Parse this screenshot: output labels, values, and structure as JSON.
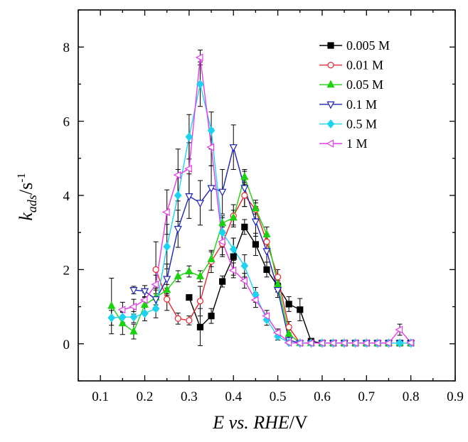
{
  "chart_data": {
    "type": "line",
    "xlabel": {
      "main": "E vs. RHE",
      "unit": "/V"
    },
    "ylabel": {
      "main": "k",
      "sub": "ads",
      "unit": "/s",
      "sup": "-1"
    },
    "xlim": [
      0.05,
      0.9
    ],
    "ylim": [
      -1,
      9
    ],
    "xticks": [
      "0.1",
      "0.2",
      "0.3",
      "0.4",
      "0.5",
      "0.6",
      "0.7",
      "0.8",
      "0.9"
    ],
    "yticks": [
      "0",
      "2",
      "4",
      "6",
      "8"
    ],
    "legend_position": "top-right",
    "series": [
      {
        "name": "0.005 M",
        "color": "#000000",
        "marker": "square",
        "fill": true,
        "points": [
          [
            0.3,
            1.25
          ],
          [
            0.325,
            0.45
          ],
          [
            0.35,
            0.75
          ],
          [
            0.375,
            1.68
          ],
          [
            0.4,
            2.35
          ],
          [
            0.425,
            3.15
          ],
          [
            0.45,
            2.68
          ],
          [
            0.475,
            2.0
          ],
          [
            0.5,
            1.55
          ],
          [
            0.525,
            1.07
          ],
          [
            0.55,
            0.92
          ],
          [
            0.575,
            0.07
          ],
          [
            0.6,
            0.02
          ],
          [
            0.625,
            0.02
          ],
          [
            0.65,
            0.02
          ],
          [
            0.675,
            0.02
          ],
          [
            0.7,
            0.02
          ],
          [
            0.725,
            0.02
          ],
          [
            0.75,
            0.02
          ],
          [
            0.775,
            0.02
          ],
          [
            0.8,
            0.02
          ]
        ],
        "errors": [
          0,
          0.5,
          0.2,
          0.15,
          0.5,
          0.2,
          0.3,
          0.2,
          0.15,
          0.2,
          0.3,
          0.05,
          0,
          0,
          0,
          0,
          0,
          0,
          0,
          0,
          0
        ]
      },
      {
        "name": "0.01 M",
        "color": "#e8262b",
        "marker": "circle",
        "fill": false,
        "points": [
          [
            0.225,
            2.0
          ],
          [
            0.25,
            1.2
          ],
          [
            0.275,
            0.68
          ],
          [
            0.3,
            0.63
          ],
          [
            0.325,
            1.15
          ],
          [
            0.35,
            2.22
          ],
          [
            0.375,
            2.7
          ],
          [
            0.4,
            3.45
          ],
          [
            0.425,
            4.0
          ],
          [
            0.45,
            3.62
          ],
          [
            0.475,
            2.75
          ],
          [
            0.5,
            1.8
          ],
          [
            0.525,
            0.45
          ],
          [
            0.55,
            0.02
          ],
          [
            0.575,
            0.02
          ],
          [
            0.6,
            0.02
          ],
          [
            0.625,
            0.02
          ],
          [
            0.65,
            0.02
          ],
          [
            0.675,
            0.02
          ],
          [
            0.7,
            0.02
          ],
          [
            0.725,
            0.02
          ],
          [
            0.75,
            0.02
          ],
          [
            0.775,
            0.02
          ],
          [
            0.8,
            0.02
          ]
        ],
        "errors": [
          0.75,
          0.3,
          0.15,
          0.12,
          0.4,
          0.3,
          0.3,
          0.3,
          0.3,
          0.25,
          0.2,
          0.2,
          0.15,
          0,
          0,
          0,
          0,
          0,
          0,
          0,
          0,
          0,
          0,
          0
        ]
      },
      {
        "name": "0.05 M",
        "color": "#1cd10f",
        "marker": "triangle-up",
        "fill": true,
        "points": [
          [
            0.125,
            1.02
          ],
          [
            0.15,
            0.55
          ],
          [
            0.175,
            0.33
          ],
          [
            0.2,
            1.05
          ],
          [
            0.225,
            1.25
          ],
          [
            0.25,
            1.45
          ],
          [
            0.275,
            1.82
          ],
          [
            0.3,
            1.95
          ],
          [
            0.325,
            1.82
          ],
          [
            0.35,
            2.28
          ],
          [
            0.375,
            3.25
          ],
          [
            0.4,
            3.4
          ],
          [
            0.425,
            4.5
          ],
          [
            0.45,
            3.65
          ],
          [
            0.475,
            2.95
          ],
          [
            0.5,
            1.6
          ],
          [
            0.525,
            0.27
          ],
          [
            0.55,
            0.02
          ],
          [
            0.575,
            0.02
          ],
          [
            0.6,
            0.02
          ],
          [
            0.625,
            0.02
          ],
          [
            0.65,
            0.02
          ],
          [
            0.675,
            0.02
          ],
          [
            0.7,
            0.02
          ],
          [
            0.725,
            0.02
          ],
          [
            0.75,
            0.02
          ],
          [
            0.775,
            0.02
          ],
          [
            0.8,
            0.02
          ]
        ],
        "errors": [
          0.75,
          0.3,
          0.2,
          0.2,
          0.2,
          0.15,
          0.15,
          0.15,
          0.15,
          0.2,
          0.2,
          0.2,
          0.15,
          0.15,
          0.2,
          0.2,
          0.1,
          0,
          0,
          0,
          0,
          0,
          0,
          0,
          0,
          0,
          0,
          0
        ]
      },
      {
        "name": "0.1 M",
        "color": "#1f23b5",
        "marker": "triangle-down",
        "fill": false,
        "points": [
          [
            0.175,
            1.45
          ],
          [
            0.2,
            1.42
          ],
          [
            0.225,
            1.2
          ],
          [
            0.25,
            1.75
          ],
          [
            0.275,
            3.1
          ],
          [
            0.3,
            3.98
          ],
          [
            0.325,
            3.8
          ],
          [
            0.35,
            4.2
          ],
          [
            0.375,
            4.1
          ],
          [
            0.4,
            5.3
          ],
          [
            0.425,
            4.2
          ],
          [
            0.45,
            3.3
          ],
          [
            0.475,
            2.5
          ],
          [
            0.5,
            1.45
          ],
          [
            0.525,
            0.1
          ],
          [
            0.55,
            0.02
          ],
          [
            0.575,
            0.02
          ],
          [
            0.6,
            0.02
          ],
          [
            0.625,
            0.02
          ],
          [
            0.65,
            0.02
          ],
          [
            0.675,
            0.02
          ],
          [
            0.7,
            0.02
          ],
          [
            0.725,
            0.02
          ],
          [
            0.75,
            0.02
          ],
          [
            0.775,
            0.02
          ],
          [
            0.8,
            0.02
          ]
        ],
        "errors": [
          0.1,
          0.15,
          0.3,
          0.4,
          0.5,
          0.6,
          0.6,
          0.6,
          0.6,
          0.6,
          0.5,
          0.4,
          0.3,
          0.2,
          0.1,
          0,
          0,
          0,
          0,
          0,
          0,
          0,
          0,
          0,
          0,
          0
        ]
      },
      {
        "name": "0.5 M",
        "color": "#1ed3f0",
        "marker": "diamond",
        "fill": true,
        "points": [
          [
            0.125,
            0.7
          ],
          [
            0.15,
            0.72
          ],
          [
            0.175,
            0.72
          ],
          [
            0.2,
            0.82
          ],
          [
            0.225,
            0.95
          ],
          [
            0.25,
            2.62
          ],
          [
            0.275,
            4.0
          ],
          [
            0.3,
            5.58
          ],
          [
            0.325,
            7.0
          ],
          [
            0.35,
            5.75
          ],
          [
            0.375,
            3.0
          ],
          [
            0.4,
            2.55
          ],
          [
            0.425,
            2.1
          ],
          [
            0.45,
            1.32
          ],
          [
            0.475,
            0.65
          ],
          [
            0.5,
            0.2
          ],
          [
            0.525,
            0.03
          ],
          [
            0.55,
            0.02
          ],
          [
            0.575,
            0.02
          ],
          [
            0.6,
            0.02
          ],
          [
            0.625,
            0.02
          ],
          [
            0.65,
            0.02
          ],
          [
            0.675,
            0.02
          ],
          [
            0.7,
            0.02
          ],
          [
            0.725,
            0.02
          ],
          [
            0.75,
            0.02
          ],
          [
            0.775,
            0.02
          ],
          [
            0.8,
            0.02
          ]
        ],
        "errors": [
          0.2,
          0.15,
          0.15,
          0.2,
          0.25,
          0.6,
          0.7,
          0.6,
          0.6,
          0.5,
          0.4,
          0.3,
          0.3,
          0.2,
          0.15,
          0.1,
          0,
          0,
          0,
          0,
          0,
          0,
          0,
          0,
          0,
          0,
          0,
          0
        ]
      },
      {
        "name": "1 M",
        "color": "#e53bea",
        "marker": "triangle-left",
        "fill": false,
        "points": [
          [
            0.15,
            0.92
          ],
          [
            0.175,
            1.0
          ],
          [
            0.2,
            1.18
          ],
          [
            0.225,
            1.6
          ],
          [
            0.25,
            3.55
          ],
          [
            0.275,
            4.55
          ],
          [
            0.3,
            4.72
          ],
          [
            0.325,
            7.72
          ],
          [
            0.35,
            5.3
          ],
          [
            0.375,
            2.75
          ],
          [
            0.4,
            1.98
          ],
          [
            0.425,
            1.7
          ],
          [
            0.45,
            1.18
          ],
          [
            0.475,
            0.75
          ],
          [
            0.5,
            0.3
          ],
          [
            0.525,
            0.03
          ],
          [
            0.55,
            0.02
          ],
          [
            0.575,
            0.02
          ],
          [
            0.6,
            0.02
          ],
          [
            0.625,
            0.02
          ],
          [
            0.65,
            0.02
          ],
          [
            0.675,
            0.02
          ],
          [
            0.7,
            0.02
          ],
          [
            0.725,
            0.02
          ],
          [
            0.75,
            0.02
          ],
          [
            0.775,
            0.38
          ],
          [
            0.8,
            0.03
          ]
        ],
        "errors": [
          0.2,
          0.2,
          0.2,
          0.25,
          0.6,
          0.7,
          0.7,
          0.2,
          0.5,
          0.4,
          0.2,
          0.2,
          0.2,
          0.15,
          0.1,
          0,
          0,
          0,
          0,
          0,
          0,
          0,
          0,
          0,
          0,
          0.15,
          0
        ]
      }
    ]
  }
}
